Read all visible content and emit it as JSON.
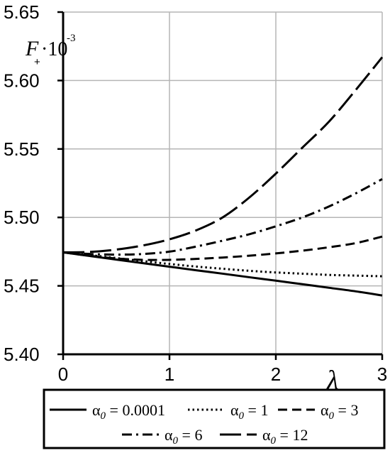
{
  "chart_data": {
    "type": "line",
    "title": "",
    "ylabel_main": "F",
    "ylabel_sub": "+",
    "ylabel_mult": "·10",
    "ylabel_exp": "-3",
    "xlabel": "λ",
    "xlim": [
      0,
      3
    ],
    "ylim": [
      5.4,
      5.65
    ],
    "grid": true,
    "x_ticks": [
      0,
      1,
      2,
      3
    ],
    "x_tick_labels": [
      "0",
      "1",
      "2",
      "3"
    ],
    "y_ticks": [
      5.4,
      5.45,
      5.5,
      5.55,
      5.6,
      5.65
    ],
    "y_tick_labels": [
      "5.40",
      "5.45",
      "5.50",
      "5.55",
      "5.60",
      "5.65"
    ],
    "legend_position": "bottom",
    "x": [
      0,
      0.25,
      0.5,
      0.75,
      1,
      1.25,
      1.5,
      1.75,
      2,
      2.25,
      2.5,
      2.75,
      3
    ],
    "series": [
      {
        "name": "α0 = 0.0001",
        "symbol": "α",
        "sub": "0",
        "value_text": "= 0.0001",
        "dash": "solid",
        "values": [
          5.4745,
          5.4718,
          5.4692,
          5.4666,
          5.464,
          5.4614,
          5.4589,
          5.4563,
          5.4538,
          5.4512,
          5.4486,
          5.446,
          5.443
        ]
      },
      {
        "name": "α0 = 1",
        "symbol": "α",
        "sub": "0",
        "value_text": "= 1",
        "dash": "dotted",
        "values": [
          5.4745,
          5.4725,
          5.4703,
          5.4681,
          5.466,
          5.4641,
          5.4625,
          5.461,
          5.4598,
          5.4589,
          5.458,
          5.4575,
          5.457
        ]
      },
      {
        "name": "α0 = 3",
        "symbol": "α",
        "sub": "0",
        "value_text": "= 3",
        "dash": "dashed",
        "values": [
          5.4745,
          5.472,
          5.47,
          5.469,
          5.469,
          5.4697,
          5.4707,
          5.472,
          5.4737,
          5.4757,
          5.4782,
          5.4812,
          5.486
        ]
      },
      {
        "name": "α0 = 6",
        "symbol": "α",
        "sub": "0",
        "value_text": "= 6",
        "dash": "dashdot",
        "values": [
          5.4745,
          5.4733,
          5.4728,
          5.4733,
          5.475,
          5.4787,
          5.483,
          5.4877,
          5.4935,
          5.5,
          5.508,
          5.5175,
          5.528
        ]
      },
      {
        "name": "α0 = 12",
        "symbol": "α",
        "sub": "0",
        "value_text": "= 12",
        "dash": "longdash",
        "values": [
          5.4745,
          5.4748,
          5.4765,
          5.4795,
          5.484,
          5.4905,
          5.5,
          5.5145,
          5.532,
          5.551,
          5.57,
          5.593,
          5.617
        ]
      }
    ]
  }
}
